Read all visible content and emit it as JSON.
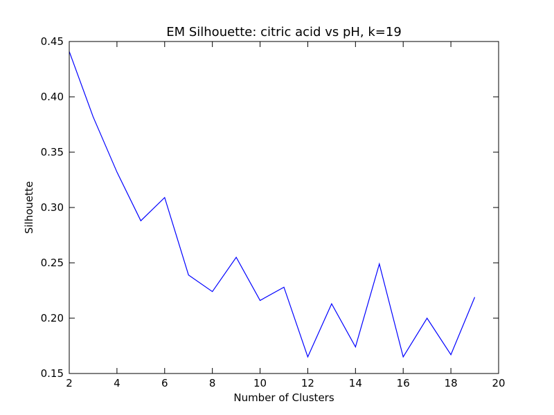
{
  "chart_data": {
    "type": "line",
    "title": "EM Silhouette: citric acid vs pH, k=19",
    "xlabel": "Number of Clusters",
    "ylabel": "Silhouette",
    "xlim": [
      2,
      20
    ],
    "ylim": [
      0.15,
      0.45
    ],
    "xticks": [
      2,
      4,
      6,
      8,
      10,
      12,
      14,
      16,
      18,
      20
    ],
    "yticks": [
      0.15,
      0.2,
      0.25,
      0.3,
      0.35,
      0.4,
      0.45
    ],
    "xtick_labels": [
      "2",
      "4",
      "6",
      "8",
      "10",
      "12",
      "14",
      "16",
      "18",
      "20"
    ],
    "ytick_labels": [
      "0.15",
      "0.20",
      "0.25",
      "0.30",
      "0.35",
      "0.40",
      "0.45"
    ],
    "grid": false,
    "series": [
      {
        "color": "#0000ff",
        "x": [
          2,
          3,
          4,
          5,
          6,
          7,
          8,
          9,
          10,
          11,
          12,
          13,
          14,
          15,
          16,
          17,
          18,
          19
        ],
        "y": [
          0.441,
          0.382,
          0.332,
          0.288,
          0.309,
          0.239,
          0.224,
          0.255,
          0.216,
          0.228,
          0.165,
          0.213,
          0.174,
          0.249,
          0.165,
          0.2,
          0.167,
          0.219
        ]
      }
    ]
  }
}
